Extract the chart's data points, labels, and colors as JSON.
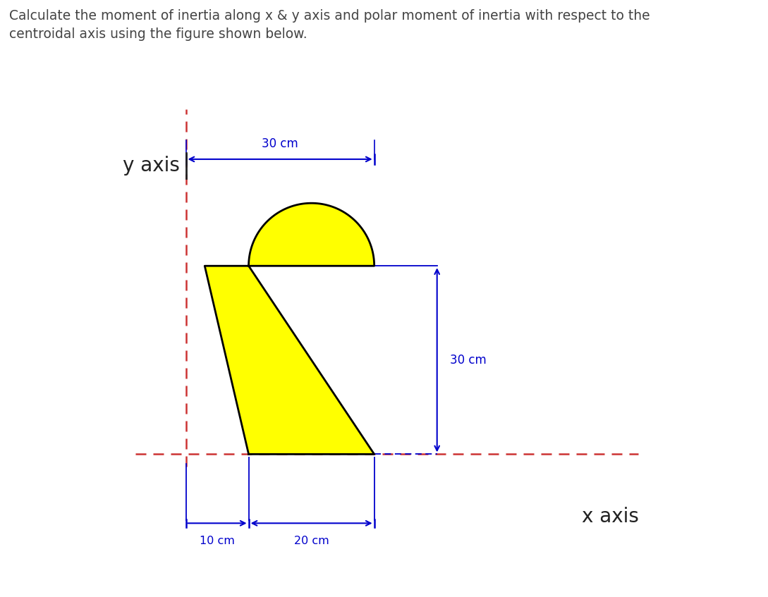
{
  "title_text": "Calculate the moment of inertia along x & y axis and polar moment of inertia with respect to the\ncentroidal axis using the figure shown below.",
  "title_color": "#444444",
  "title_fontsize": 13.5,
  "bg_color": "#ffffff",
  "shape_fill": "#ffff00",
  "shape_edge": "#000000",
  "axis_color": "#cc3333",
  "dim_color": "#0000cc",
  "y_axis_label": "y axis",
  "x_axis_label": "x axis",
  "dim_30_top": "30 cm",
  "dim_30_right": "30 cm",
  "dim_10": "10 cm",
  "dim_20": "20 cm"
}
